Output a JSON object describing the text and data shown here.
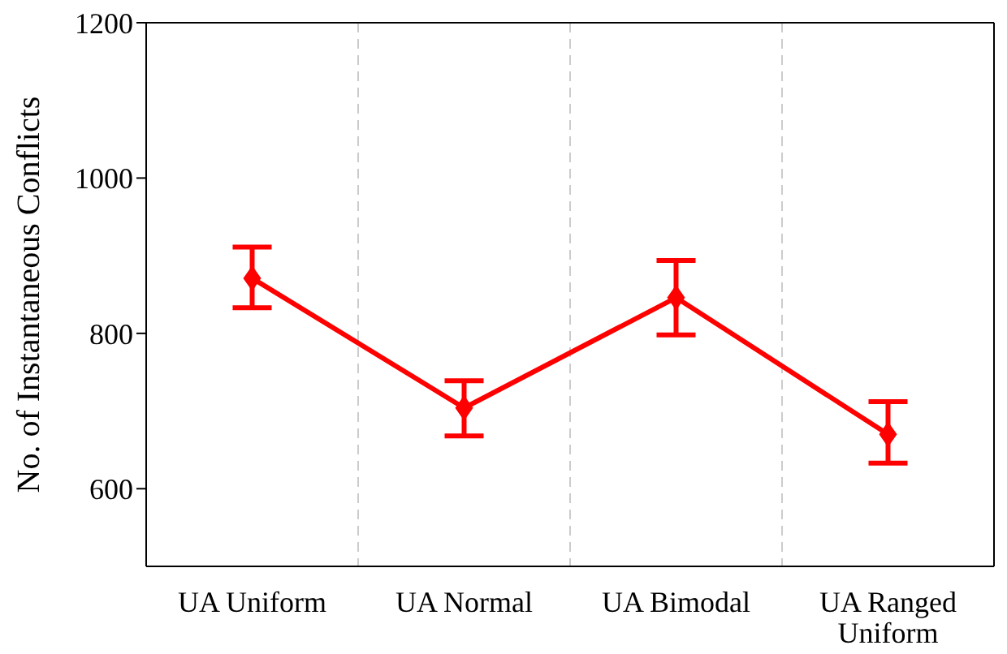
{
  "chart_data": {
    "type": "line",
    "ylabel": "No. of Instantaneous Conflicts",
    "categories": [
      "UA Uniform",
      "UA Normal",
      "UA Bimodal",
      "UA Ranged Uniform"
    ],
    "series": [
      {
        "color": "#ff0000",
        "values": [
          871,
          704,
          846,
          670
        ],
        "errors": [
          [
            833,
            911
          ],
          [
            668,
            739
          ],
          [
            798,
            894
          ],
          [
            633,
            712
          ]
        ]
      }
    ],
    "ylim": [
      500,
      1200
    ],
    "yticks": [
      600,
      800,
      1000,
      1200
    ],
    "grid": "x",
    "marker": "diamond",
    "line_style": "solid",
    "legend": false
  }
}
